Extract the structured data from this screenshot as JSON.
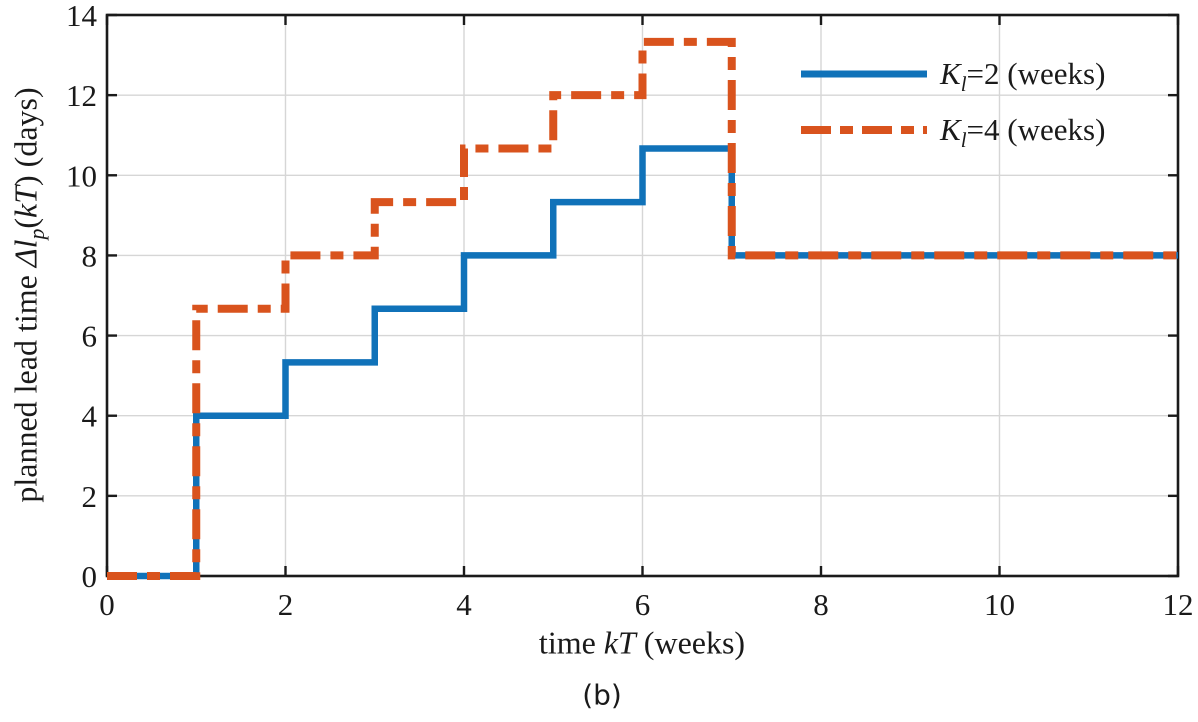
{
  "figure": {
    "caption": "(b)",
    "background": "#ffffff"
  },
  "chart_data": {
    "type": "line",
    "subtype": "step-after",
    "title": "",
    "xlabel_parts": {
      "pre": "time ",
      "kt": "kT",
      "post": " (weeks)"
    },
    "ylabel_parts": {
      "pre": "planned lead time ",
      "delta_l": "Δl",
      "sub": "p",
      "open": "(",
      "kt": "kT",
      "post": ") (days)"
    },
    "xlim": [
      0,
      12
    ],
    "ylim": [
      0,
      14
    ],
    "x_ticks": [
      0,
      2,
      4,
      6,
      8,
      10,
      12
    ],
    "y_ticks": [
      0,
      2,
      4,
      6,
      8,
      10,
      12,
      14
    ],
    "grid": true,
    "grid_color": "#d6d6d6",
    "axis_color": "#1a1a1a",
    "legend_position": "top-right",
    "series": [
      {
        "name_pre": "K",
        "name_sub": "l",
        "name_post": "=2 (weeks)",
        "color": "#1072b9",
        "style": "solid",
        "line_width": 6.5,
        "step_x": [
          0,
          1,
          2,
          3,
          4,
          5,
          6,
          7
        ],
        "step_y": [
          0,
          4,
          5.33,
          6.67,
          8,
          9.33,
          10.67,
          8
        ],
        "end_x": 12
      },
      {
        "name_pre": "K",
        "name_sub": "l",
        "name_post": "=4 (weeks)",
        "color": "#d9531d",
        "style": "dash-dot",
        "dash": [
          30,
          10,
          13,
          10
        ],
        "line_width": 8,
        "step_x": [
          0,
          1,
          2,
          3,
          4,
          5,
          6,
          7
        ],
        "step_y": [
          0,
          6.67,
          8,
          9.33,
          10.67,
          12,
          13.33,
          8
        ],
        "end_x": 12
      }
    ]
  }
}
